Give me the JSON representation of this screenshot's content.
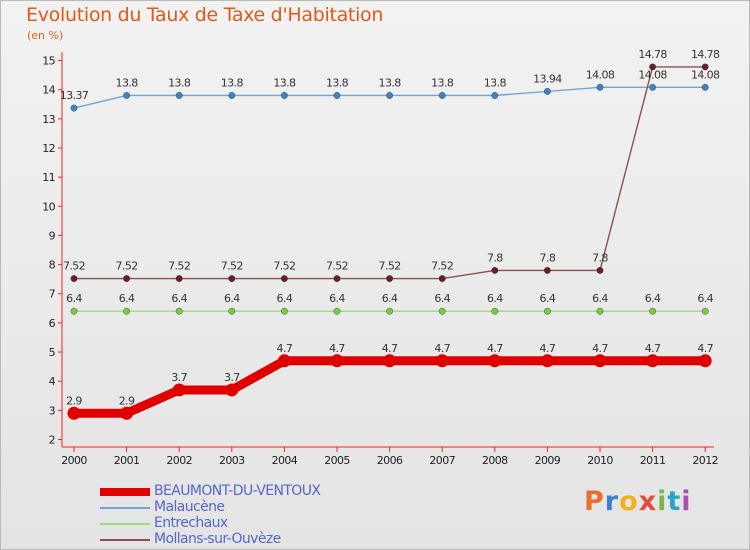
{
  "chart_data": {
    "type": "line",
    "title": "Evolution du Taux de Taxe d'Habitation",
    "ylabel": "(en %)",
    "xlabel": "",
    "x": [
      "2000",
      "2001",
      "2002",
      "2003",
      "2004",
      "2005",
      "2006",
      "2007",
      "2008",
      "2009",
      "2010",
      "2011",
      "2012"
    ],
    "yticks": [
      2,
      3,
      4,
      5,
      6,
      7,
      8,
      9,
      10,
      11,
      12,
      13,
      14,
      15
    ],
    "ylim": [
      2,
      15
    ],
    "grid": false,
    "legend_position": "bottom-left",
    "series": [
      {
        "name": "BEAUMONT-DU-VENTOUX",
        "color": "#e00000",
        "stroke": "thick",
        "values": [
          2.9,
          2.9,
          3.7,
          3.7,
          4.7,
          4.7,
          4.7,
          4.7,
          4.7,
          4.7,
          4.7,
          4.7,
          4.7
        ],
        "labels": [
          "2.9",
          "2.9",
          "3.7",
          "3.7",
          "4.7",
          "4.7",
          "4.7",
          "4.7",
          "4.7",
          "4.7",
          "4.7",
          "4.7",
          "4.7"
        ]
      },
      {
        "name": "Malaucène",
        "color": "#6ea5d6",
        "marker_color": "#3d82c4",
        "stroke": "thin",
        "values": [
          13.37,
          13.8,
          13.8,
          13.8,
          13.8,
          13.8,
          13.8,
          13.8,
          13.8,
          13.94,
          14.08,
          14.08,
          14.08
        ],
        "labels": [
          "13.37",
          "13.8",
          "13.8",
          "13.8",
          "13.8",
          "13.8",
          "13.8",
          "13.8",
          "13.8",
          "13.94",
          "14.08",
          "14.08",
          "14.08"
        ]
      },
      {
        "name": "Entrechaux",
        "color": "#99dd77",
        "marker_color": "#77cc44",
        "stroke": "thin",
        "values": [
          6.4,
          6.4,
          6.4,
          6.4,
          6.4,
          6.4,
          6.4,
          6.4,
          6.4,
          6.4,
          6.4,
          6.4,
          6.4
        ],
        "labels": [
          "6.4",
          "6.4",
          "6.4",
          "6.4",
          "6.4",
          "6.4",
          "6.4",
          "6.4",
          "6.4",
          "6.4",
          "6.4",
          "6.4",
          "6.4"
        ]
      },
      {
        "name": "Mollans-sur-Ouvèze",
        "color": "#8a5050",
        "marker_color": "#6a1e24",
        "stroke": "thin",
        "values": [
          7.52,
          7.52,
          7.52,
          7.52,
          7.52,
          7.52,
          7.52,
          7.52,
          7.8,
          7.8,
          7.8,
          14.78,
          14.78
        ],
        "labels": [
          "7.52",
          "7.52",
          "7.52",
          "7.52",
          "7.52",
          "7.52",
          "7.52",
          "7.52",
          "7.8",
          "7.8",
          "7.8",
          "14.78",
          "14.78"
        ]
      }
    ]
  },
  "brand": {
    "text": "Proxiti",
    "colors": [
      "#e8702a",
      "#3d7fd0",
      "#f0b21e",
      "#e64a3c",
      "#7ab648",
      "#2aa3c8",
      "#b04fb0"
    ]
  }
}
